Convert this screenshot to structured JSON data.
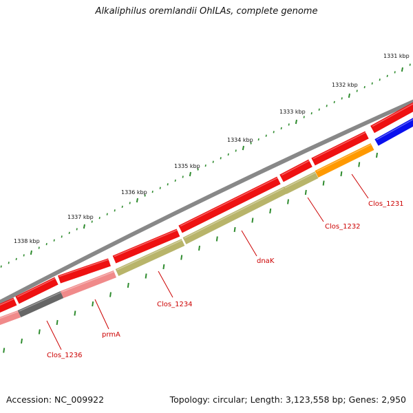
{
  "title": "Alkaliphilus oremlandii OhILAs, complete genome",
  "footer": {
    "accession": "Accession: NC_009922",
    "summary": "Topology: circular; Length: 3,123,558 bp; Genes: 2,950"
  },
  "ruler": {
    "labels": [
      "1331 kbp",
      "1332 kbp",
      "1333 kbp",
      "1334 kbp",
      "1335 kbp",
      "1336 kbp",
      "1337 kbp",
      "1338 kbp"
    ]
  },
  "gene_labels": [
    "Clos_1231",
    "Clos_1232",
    "dnaK",
    "Clos_1234",
    "prmA",
    "Clos_1236"
  ],
  "colors": {
    "backbone": "#888888",
    "forward_cds": "#ee1111",
    "pseudo": "#f08a8a",
    "dark": "#666666",
    "olive": "#b8b46a",
    "orange": "#ff9900",
    "blue": "#0a10ee",
    "tick": "#2e8b2e",
    "label": "#cc0000"
  }
}
